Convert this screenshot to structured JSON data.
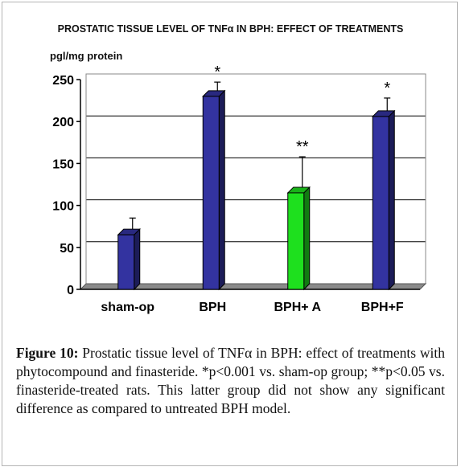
{
  "chart_data": {
    "type": "bar",
    "title": "PROSTATIC TISSUE LEVEL OF TNFα IN BPH: EFFECT OF TREATMENTS",
    "ylabel": "pgl/mg protein",
    "xlabel": "",
    "categories": [
      "sham-op",
      "BPH",
      "BPH+ A",
      "BPH+F"
    ],
    "values": [
      65,
      230,
      115,
      206
    ],
    "error_upper": [
      85,
      247,
      158,
      228
    ],
    "significance": [
      "",
      "*",
      "**",
      "*"
    ],
    "bar_colors": [
      "#3333a0",
      "#3333a0",
      "#1ee01e",
      "#3333a0"
    ],
    "yticks": [
      0,
      50,
      100,
      150,
      200,
      250
    ],
    "ylim": [
      0,
      250
    ],
    "grid": true,
    "legend": "none"
  },
  "caption": {
    "label": "Figure 10:",
    "text": " Prostatic tissue level of TNFα in BPH: effect of treatments with phytocompound and finasteride. *p<0.001 vs. sham-op group; **p<0.05 vs. finasteride-treated rats. This latter group did not show any significant difference as compared to untreated BPH model."
  }
}
